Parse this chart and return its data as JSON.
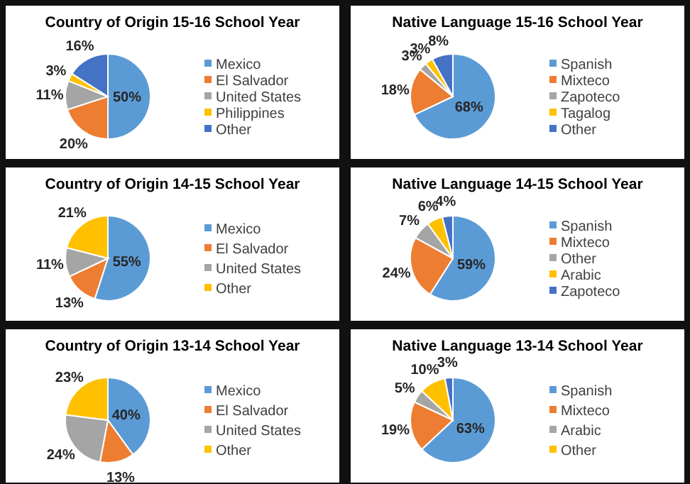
{
  "chart_data": [
    {
      "type": "pie",
      "title": "Country of Origin 15-16 School Year",
      "categories": [
        "Mexico",
        "El Salvador",
        "United States",
        "Philippines",
        "Other"
      ],
      "values": [
        50,
        20,
        11,
        3,
        16
      ],
      "value_labels": [
        "50%",
        "20%",
        "11%",
        "3%",
        "16%"
      ],
      "colors": [
        "#5b9bd5",
        "#ed7d31",
        "#a5a5a5",
        "#ffc000",
        "#4472c4"
      ],
      "legend": "right"
    },
    {
      "type": "pie",
      "title": "Native Language 15-16 School Year",
      "categories": [
        "Spanish",
        "Mixteco",
        "Zapoteco",
        "Tagalog",
        "Other"
      ],
      "values": [
        68,
        18,
        3,
        3,
        8
      ],
      "value_labels": [
        "68%",
        "18%",
        "3%",
        "3%",
        "8%"
      ],
      "colors": [
        "#5b9bd5",
        "#ed7d31",
        "#a5a5a5",
        "#ffc000",
        "#4472c4"
      ],
      "legend": "right"
    },
    {
      "type": "pie",
      "title": "Country of Origin 14-15 School Year",
      "categories": [
        "Mexico",
        "El Salvador",
        "United States",
        "Other"
      ],
      "values": [
        55,
        13,
        11,
        21
      ],
      "value_labels": [
        "55%",
        "13%",
        "11%",
        "21%"
      ],
      "colors": [
        "#5b9bd5",
        "#ed7d31",
        "#a5a5a5",
        "#ffc000"
      ],
      "legend": "right"
    },
    {
      "type": "pie",
      "title": "Native Language 14-15 School Year",
      "categories": [
        "Spanish",
        "Mixteco",
        "Other",
        "Arabic",
        "Zapoteco"
      ],
      "values": [
        59,
        24,
        7,
        6,
        4
      ],
      "value_labels": [
        "59%",
        "24%",
        "7%",
        "6%",
        "4%"
      ],
      "colors": [
        "#5b9bd5",
        "#ed7d31",
        "#a5a5a5",
        "#ffc000",
        "#4472c4"
      ],
      "legend": "right"
    },
    {
      "type": "pie",
      "title": "Country of Origin 13-14 School Year",
      "categories": [
        "Mexico",
        "El Salvador",
        "United States",
        "Other"
      ],
      "values": [
        40,
        13,
        24,
        23
      ],
      "value_labels": [
        "40%",
        "13%",
        "24%",
        "23%"
      ],
      "colors": [
        "#5b9bd5",
        "#ed7d31",
        "#a5a5a5",
        "#ffc000"
      ],
      "legend": "right"
    },
    {
      "type": "pie",
      "title": "Native Language 13-14 School Year",
      "categories": [
        "Spanish",
        "Mixteco",
        "Arabic",
        "Other",
        null
      ],
      "values": [
        63,
        19,
        5,
        10,
        3
      ],
      "value_labels": [
        "63%",
        "19%",
        "5%",
        "10%",
        "3%"
      ],
      "colors": [
        "#5b9bd5",
        "#ed7d31",
        "#a5a5a5",
        "#ffc000",
        "#4472c4"
      ],
      "legend": "right"
    }
  ]
}
